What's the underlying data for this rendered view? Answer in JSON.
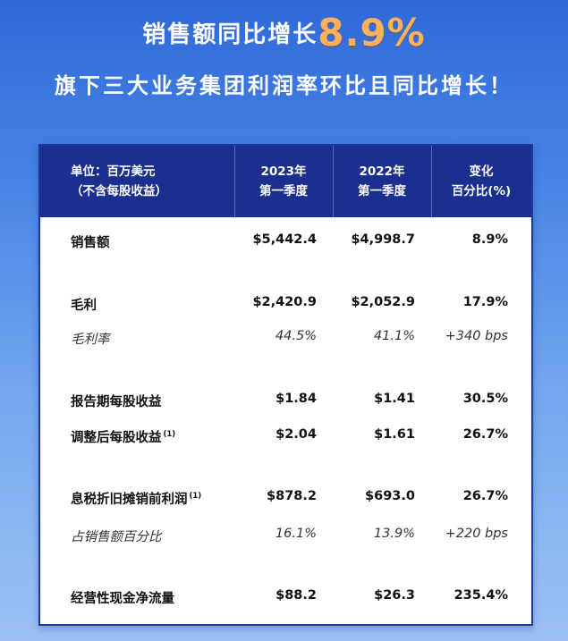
{
  "headline": {
    "text": "销售额同比增长",
    "percent": "8.9%"
  },
  "subheadline": "旗下三大业务集团利润率环比且同比增长！",
  "table": {
    "header": {
      "unit_line1": "单位：百万美元",
      "unit_line2": "（不含每股收益）",
      "col1_line1": "2023年",
      "col1_line2": "第一季度",
      "col2_line1": "2022年",
      "col2_line2": "第一季度",
      "col3_line1": "变化",
      "col3_line2": "百分比(%)"
    },
    "rows": [
      {
        "label": "销售额",
        "note": "",
        "v2023": "$5,442.4",
        "v2022": "$4,998.7",
        "change": "8.9%"
      },
      {
        "label": "毛利",
        "note": "",
        "v2023": "$2,420.9",
        "v2022": "$2,052.9",
        "change": "17.9%"
      },
      {
        "label": "毛利率",
        "note": "",
        "v2023": "44.5%",
        "v2022": "41.1%",
        "change": "+340 bps"
      },
      {
        "label": "报告期每股收益",
        "note": "",
        "v2023": "$1.84",
        "v2022": "$1.41",
        "change": "30.5%"
      },
      {
        "label": "调整后每股收益",
        "note": "(1)",
        "v2023": "$2.04",
        "v2022": "$1.61",
        "change": "26.7%"
      },
      {
        "label": "息税折旧摊销前利润",
        "note": "(1)",
        "v2023": "$878.2",
        "v2022": "$693.0",
        "change": "26.7%"
      },
      {
        "label": "占销售额百分比",
        "note": "",
        "v2023": "16.1%",
        "v2022": "13.9%",
        "change": "+220 bps"
      },
      {
        "label": "经营性现金净流量",
        "note": "",
        "v2023": "$88.2",
        "v2022": "$26.3",
        "change": "235.4%"
      }
    ]
  }
}
